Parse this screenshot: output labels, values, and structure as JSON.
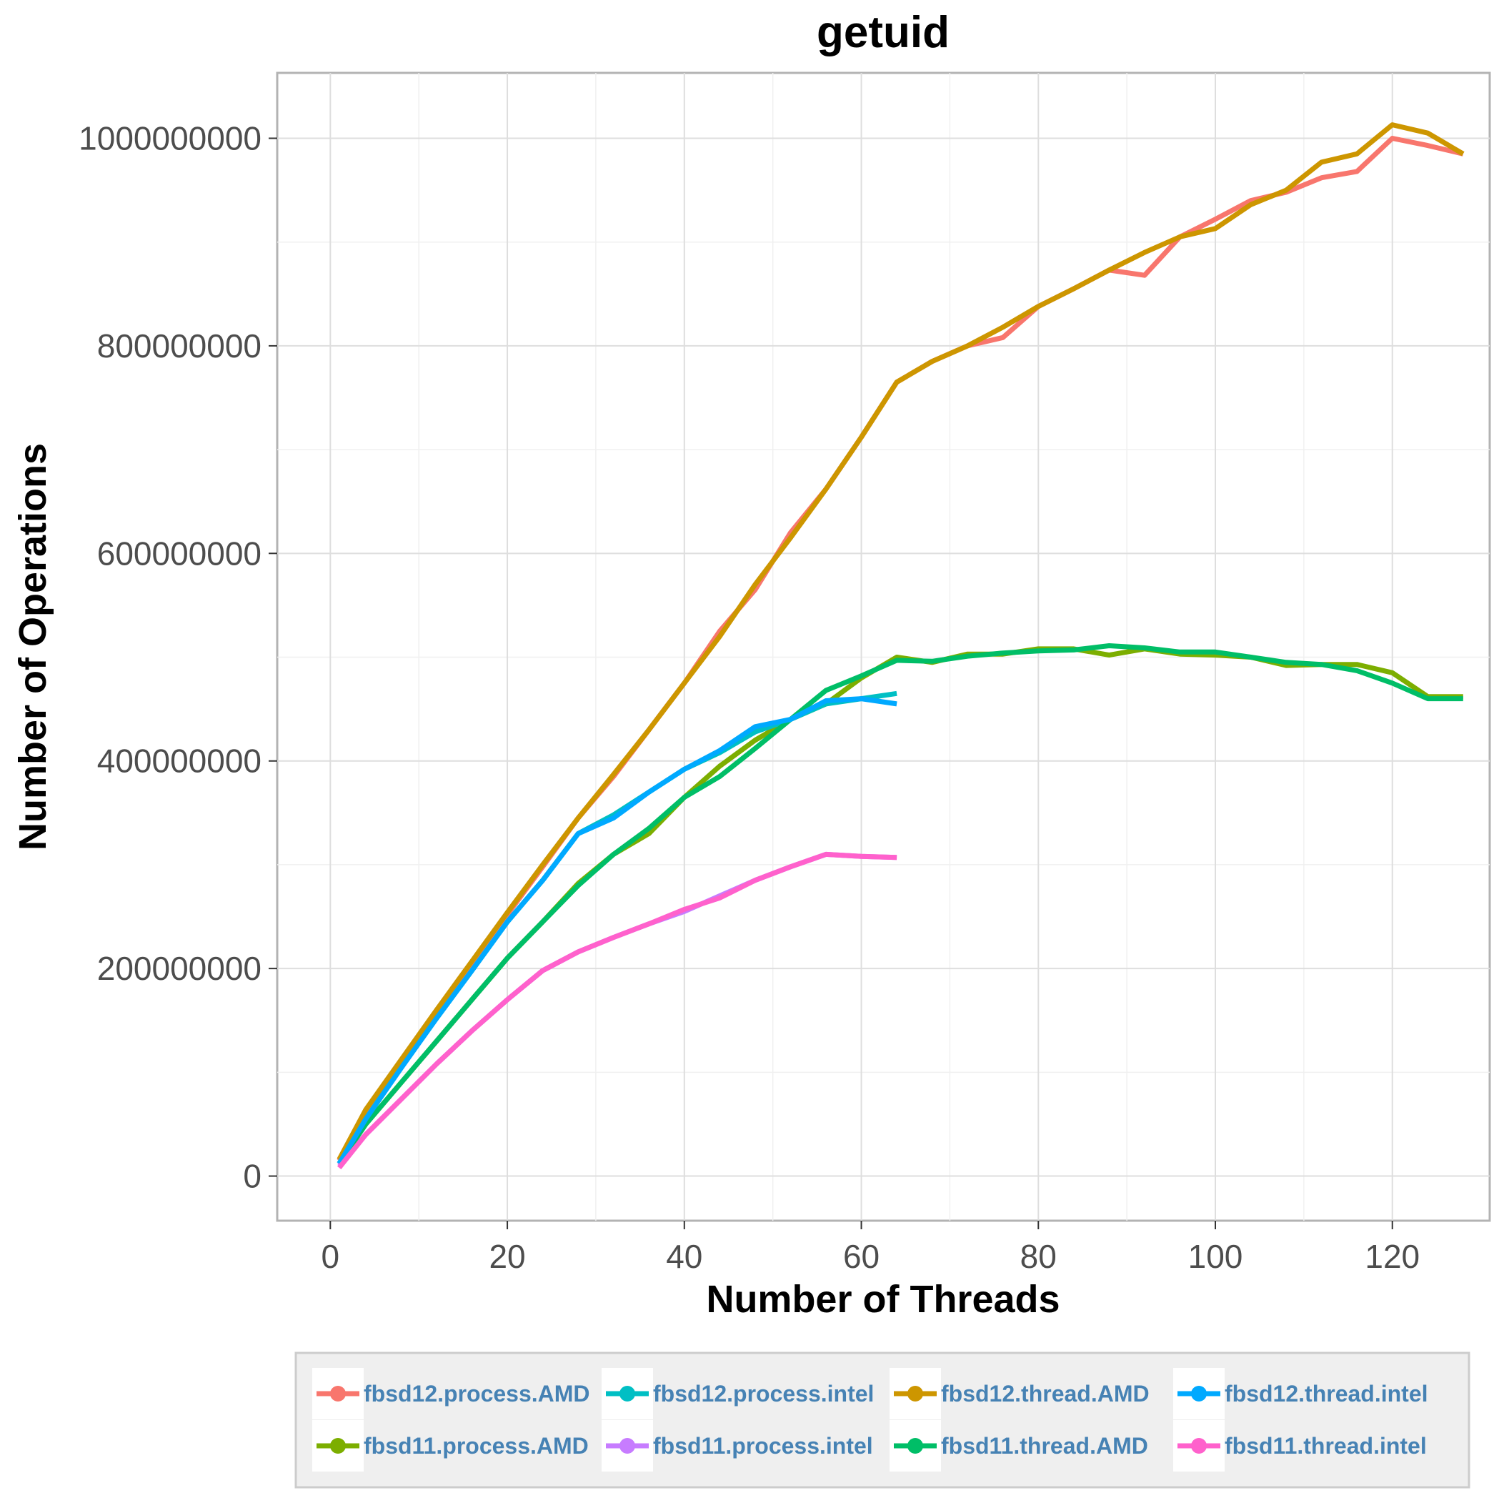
{
  "chart_data": {
    "type": "line",
    "title": "getuid",
    "xlabel": "Number of Threads",
    "ylabel": "Number of Operations",
    "xlim": [
      -6,
      131
    ],
    "ylim": [
      -43000000,
      1063000000
    ],
    "xticks": [
      0,
      20,
      40,
      60,
      80,
      100,
      120
    ],
    "xtick_labels": [
      "0",
      "20",
      "40",
      "60",
      "80",
      "100",
      "120"
    ],
    "yticks": [
      0,
      200000000,
      400000000,
      600000000,
      800000000,
      1000000000
    ],
    "ytick_labels": [
      "0",
      "200000000",
      "400000000",
      "600000000",
      "800000000",
      "1000000000"
    ],
    "grid": true,
    "legend_position": "bottom",
    "series": [
      {
        "name": "fbsd12.process.AMD",
        "color": "#f8766d",
        "x": [
          1,
          4,
          8,
          12,
          16,
          20,
          24,
          28,
          32,
          36,
          40,
          44,
          48,
          52,
          56,
          60,
          64,
          68,
          72,
          76,
          80,
          84,
          88,
          92,
          96,
          100,
          104,
          108,
          112,
          116,
          120,
          124,
          128
        ],
        "y": [
          15000000,
          62000000,
          110000000,
          158000000,
          205000000,
          252000000,
          298000000,
          345000000,
          385000000,
          430000000,
          475000000,
          525000000,
          565000000,
          620000000,
          662000000,
          712000000,
          765000000,
          785000000,
          800000000,
          808000000,
          838000000,
          855000000,
          873000000,
          868000000,
          905000000,
          922000000,
          940000000,
          948000000,
          962000000,
          968000000,
          1000000000,
          993000000,
          985000000
        ]
      },
      {
        "name": "fbsd11.process.AMD",
        "color": "#7cae00",
        "x": [
          1,
          4,
          8,
          12,
          16,
          20,
          24,
          28,
          32,
          36,
          40,
          44,
          48,
          52,
          56,
          60,
          64,
          68,
          72,
          76,
          80,
          84,
          88,
          92,
          96,
          100,
          104,
          108,
          112,
          116,
          120,
          124,
          128
        ],
        "y": [
          12000000,
          50000000,
          90000000,
          130000000,
          170000000,
          210000000,
          245000000,
          282000000,
          310000000,
          330000000,
          365000000,
          395000000,
          420000000,
          440000000,
          455000000,
          480000000,
          500000000,
          495000000,
          503000000,
          503000000,
          508000000,
          508000000,
          502000000,
          508000000,
          503000000,
          502000000,
          500000000,
          492000000,
          493000000,
          493000000,
          485000000,
          462000000,
          462000000
        ]
      },
      {
        "name": "fbsd12.process.intel",
        "color": "#00bfc4",
        "x": [
          1,
          4,
          8,
          12,
          16,
          20,
          24,
          28,
          32,
          36,
          40,
          44,
          48,
          52,
          56,
          60,
          64
        ],
        "y": [
          12000000,
          55000000,
          105000000,
          152000000,
          198000000,
          245000000,
          285000000,
          330000000,
          348000000,
          370000000,
          392000000,
          408000000,
          428000000,
          440000000,
          455000000,
          460000000,
          465000000
        ]
      },
      {
        "name": "fbsd11.process.intel",
        "color": "#c77cff",
        "x": [
          1,
          4,
          8,
          12,
          16,
          20,
          24,
          28,
          32,
          36,
          40,
          44,
          48,
          52,
          56,
          60,
          64
        ],
        "y": [
          10000000,
          40000000,
          74000000,
          108000000,
          140000000,
          170000000,
          198000000,
          216000000,
          230000000,
          243000000,
          255000000,
          270000000,
          285000000,
          298000000,
          310000000,
          308000000,
          307000000
        ]
      },
      {
        "name": "fbsd12.thread.AMD",
        "color": "#cd9600",
        "x": [
          1,
          4,
          8,
          12,
          16,
          20,
          24,
          28,
          32,
          36,
          40,
          44,
          48,
          52,
          56,
          60,
          64,
          68,
          72,
          76,
          80,
          84,
          88,
          92,
          96,
          100,
          104,
          108,
          112,
          116,
          120,
          124,
          128
        ],
        "y": [
          16000000,
          64000000,
          112000000,
          160000000,
          207000000,
          254000000,
          300000000,
          345000000,
          387000000,
          430000000,
          475000000,
          520000000,
          570000000,
          615000000,
          662000000,
          712000000,
          765000000,
          785000000,
          800000000,
          818000000,
          838000000,
          855000000,
          873000000,
          890000000,
          905000000,
          913000000,
          936000000,
          950000000,
          977000000,
          985000000,
          1013000000,
          1005000000,
          985000000
        ]
      },
      {
        "name": "fbsd11.thread.AMD",
        "color": "#00be67",
        "x": [
          1,
          4,
          8,
          12,
          16,
          20,
          24,
          28,
          32,
          36,
          40,
          44,
          48,
          52,
          56,
          60,
          64,
          68,
          72,
          76,
          80,
          84,
          88,
          92,
          96,
          100,
          104,
          108,
          112,
          116,
          120,
          124,
          128
        ],
        "y": [
          12000000,
          50000000,
          90000000,
          130000000,
          170000000,
          210000000,
          245000000,
          280000000,
          310000000,
          335000000,
          365000000,
          385000000,
          412000000,
          440000000,
          468000000,
          482000000,
          497000000,
          496000000,
          501000000,
          504000000,
          506000000,
          507000000,
          511000000,
          509000000,
          505000000,
          505000000,
          500000000,
          495000000,
          493000000,
          487000000,
          475000000,
          460000000,
          460000000
        ]
      },
      {
        "name": "fbsd12.thread.intel",
        "color": "#00a9ff",
        "x": [
          1,
          4,
          8,
          12,
          16,
          20,
          24,
          28,
          32,
          36,
          40,
          44,
          48,
          52,
          56,
          60,
          64
        ],
        "y": [
          12000000,
          55000000,
          104000000,
          152000000,
          198000000,
          245000000,
          285000000,
          330000000,
          345000000,
          370000000,
          392000000,
          410000000,
          433000000,
          440000000,
          458000000,
          460000000,
          455000000
        ]
      },
      {
        "name": "fbsd11.thread.intel",
        "color": "#ff61cc",
        "x": [
          1,
          4,
          8,
          12,
          16,
          20,
          24,
          28,
          32,
          36,
          40,
          44,
          48,
          52,
          56,
          60,
          64
        ],
        "y": [
          8000000,
          40000000,
          74000000,
          108000000,
          140000000,
          170000000,
          198000000,
          216000000,
          230000000,
          243000000,
          257000000,
          268000000,
          285000000,
          298000000,
          310000000,
          308000000,
          307000000
        ]
      }
    ]
  }
}
